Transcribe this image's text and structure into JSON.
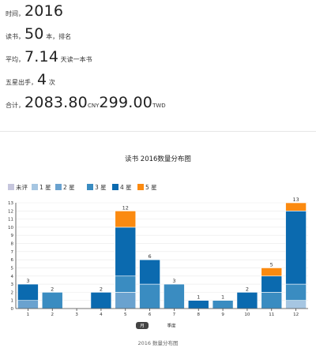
{
  "stats": {
    "time": {
      "label": "时间，",
      "value": "2016"
    },
    "read": {
      "label": "读书，",
      "value": "50",
      "unit": " 本，排名"
    },
    "avg": {
      "label": "平均，",
      "value": "7.14",
      "unit": " 天读一本书"
    },
    "five_star": {
      "label": "五星出手，",
      "value": "4",
      "unit": " 次"
    },
    "total": {
      "label": "合计，",
      "value1": "2083.80",
      "unit1": "CNY",
      "value2": "299.00",
      "unit2": "TWD"
    }
  },
  "toggle": {
    "month_label": "月",
    "season_label": "季度"
  },
  "footer_title": "2016 数量分布图",
  "chart_data": {
    "type": "bar",
    "stacked": true,
    "title": "读书 2016数量分布图",
    "categories": [
      "1",
      "2",
      "3",
      "4",
      "5",
      "6",
      "7",
      "8",
      "9",
      "10",
      "11",
      "12"
    ],
    "totals": [
      3,
      2,
      0,
      2,
      12,
      6,
      3,
      1,
      1,
      2,
      5,
      13
    ],
    "series": [
      {
        "name": "未评",
        "color": "#c6c6dd",
        "values": [
          0,
          0,
          0,
          0,
          0,
          0,
          0,
          0,
          0,
          0,
          0,
          0
        ]
      },
      {
        "name": "1 星",
        "color": "#a6c6e2",
        "values": [
          0,
          0,
          0,
          0,
          0,
          0,
          0,
          0,
          0,
          0,
          0,
          1
        ]
      },
      {
        "name": "2 星",
        "color": "#6aa2cf",
        "values": [
          1,
          0,
          0,
          0,
          2,
          0,
          0,
          0,
          0,
          0,
          0,
          0
        ]
      },
      {
        "name": "3 星",
        "color": "#3a8cc1",
        "values": [
          0,
          2,
          0,
          0,
          2,
          3,
          3,
          0,
          1,
          0,
          2,
          2
        ]
      },
      {
        "name": "4 星",
        "color": "#0b6aaf",
        "values": [
          2,
          0,
          0,
          2,
          6,
          3,
          0,
          1,
          0,
          2,
          2,
          9
        ]
      },
      {
        "name": "5 星",
        "color": "#fb8a10",
        "values": [
          0,
          0,
          0,
          0,
          2,
          0,
          0,
          0,
          0,
          0,
          1,
          1
        ]
      }
    ],
    "ylim": [
      0,
      13
    ],
    "yticks": [
      0,
      1,
      2,
      3,
      4,
      5,
      6,
      7,
      8,
      9,
      10,
      11,
      12,
      13
    ],
    "grid": true,
    "legend": "top-left"
  }
}
